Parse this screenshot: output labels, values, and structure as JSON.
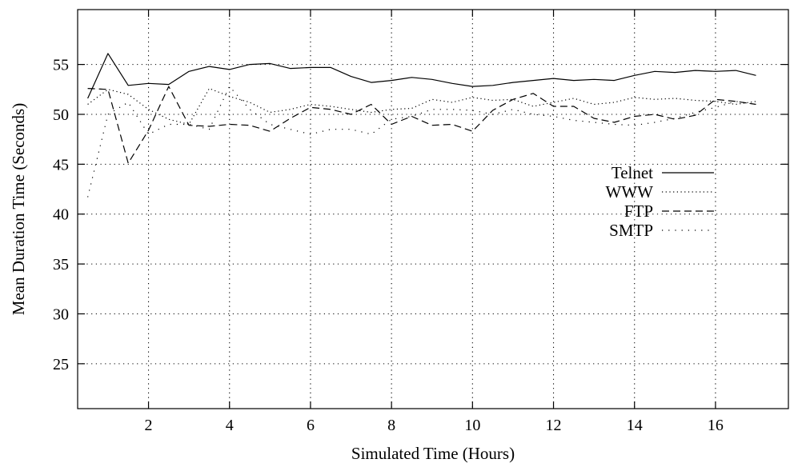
{
  "chart_data": {
    "type": "line",
    "title": "",
    "xlabel": "Simulated Time (Hours)",
    "ylabel": "Mean Duration Time (Seconds)",
    "xlim": [
      0.25,
      17.8
    ],
    "ylim": [
      20.5,
      60.5
    ],
    "xticks": [
      2,
      4,
      6,
      8,
      10,
      12,
      14,
      16
    ],
    "yticks": [
      25,
      30,
      35,
      40,
      45,
      50,
      55
    ],
    "grid": true,
    "legend_position": "right",
    "x": [
      0.5,
      1,
      1.5,
      2,
      2.5,
      3,
      3.5,
      4,
      4.5,
      5,
      5.5,
      6,
      6.5,
      7,
      7.5,
      8,
      8.5,
      9,
      9.5,
      10,
      10.5,
      11,
      11.5,
      12,
      12.5,
      13,
      13.5,
      14,
      14.5,
      15,
      15.5,
      16,
      16.5,
      17
    ],
    "series": [
      {
        "name": "Telnet",
        "dash": "solid",
        "values": [
          51.6,
          56.1,
          52.9,
          53.1,
          53.0,
          54.3,
          54.8,
          54.5,
          55.0,
          55.1,
          54.6,
          54.7,
          54.7,
          53.8,
          53.2,
          53.4,
          53.7,
          53.5,
          53.1,
          52.8,
          52.9,
          53.2,
          53.4,
          53.6,
          53.4,
          53.5,
          53.4,
          53.9,
          54.3,
          54.2,
          54.4,
          54.3,
          54.4,
          53.9
        ]
      },
      {
        "name": "WWW",
        "dash": "dotted",
        "values": [
          51.0,
          52.5,
          52.0,
          50.5,
          49.5,
          49.0,
          52.6,
          51.8,
          51.2,
          50.2,
          50.5,
          51.0,
          50.8,
          50.5,
          50.2,
          50.5,
          50.6,
          51.5,
          51.2,
          51.7,
          51.4,
          51.5,
          50.8,
          51.2,
          51.6,
          51.0,
          51.2,
          51.7,
          51.5,
          51.6,
          51.4,
          51.3,
          51.0,
          51.3
        ]
      },
      {
        "name": "FTP",
        "dash": "dashed",
        "values": [
          52.6,
          52.5,
          45.1,
          48.4,
          52.8,
          48.9,
          48.8,
          49.0,
          48.9,
          48.3,
          49.6,
          50.7,
          50.5,
          50.0,
          51.0,
          49.0,
          49.8,
          48.9,
          49.0,
          48.3,
          50.4,
          51.5,
          52.1,
          50.8,
          50.8,
          49.6,
          49.2,
          49.8,
          50.0,
          49.5,
          49.9,
          51.5,
          51.3,
          51.0
        ]
      },
      {
        "name": "SMTP",
        "dash": "sparse-dotted",
        "values": [
          41.7,
          50.0,
          51.2,
          48.0,
          49.0,
          49.0,
          48.5,
          52.8,
          50.5,
          49.0,
          48.5,
          48.0,
          48.5,
          48.5,
          48.0,
          49.5,
          49.8,
          50.5,
          50.5,
          50.4,
          50.0,
          50.5,
          50.0,
          49.8,
          49.4,
          49.2,
          49.0,
          48.9,
          49.2,
          49.6,
          50.2,
          50.7,
          51.3,
          51.0
        ]
      }
    ]
  }
}
